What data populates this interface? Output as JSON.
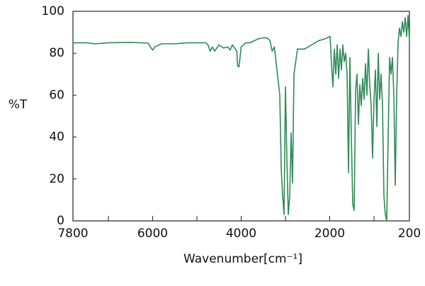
{
  "chart_data": {
    "type": "line",
    "xlabel": "Wavenumber[cm⁻¹]",
    "ylabel": "%T",
    "color": "#2e8b57",
    "xlim": [
      7800,
      200
    ],
    "ylim": [
      0,
      100
    ],
    "xticks": [
      7800,
      6000,
      4000,
      2000,
      200
    ],
    "xminorticks": [
      7000,
      5000,
      3000,
      1000
    ],
    "yticks": [
      0,
      20,
      40,
      60,
      80,
      100
    ],
    "x": [
      7800,
      7500,
      7300,
      7000,
      6500,
      6100,
      6050,
      6000,
      5950,
      5800,
      5500,
      5200,
      4800,
      4750,
      4700,
      4650,
      4600,
      4500,
      4400,
      4300,
      4250,
      4200,
      4100,
      4080,
      4050,
      4000,
      3900,
      3800,
      3600,
      3450,
      3400,
      3350,
      3300,
      3250,
      3128,
      3096,
      3064,
      3032,
      3000,
      2968,
      2936,
      2904,
      2872,
      2840,
      2808,
      2728,
      2568,
      2408,
      2248,
      2088,
      1992,
      1960,
      1928,
      1896,
      1864,
      1832,
      1800,
      1768,
      1736,
      1704,
      1672,
      1640,
      1608,
      1576,
      1544,
      1512,
      1480,
      1448,
      1416,
      1384,
      1352,
      1320,
      1288,
      1256,
      1224,
      1192,
      1160,
      1128,
      1096,
      1064,
      1032,
      1000,
      968,
      936,
      904,
      872,
      840,
      808,
      776,
      744,
      712,
      680,
      648,
      616,
      584,
      552,
      520,
      488,
      456,
      424,
      392,
      360,
      328,
      296,
      264,
      232,
      200
    ],
    "values": [
      85,
      85,
      84.5,
      85,
      85.2,
      84.8,
      83,
      81.5,
      83,
      84.5,
      84.5,
      85,
      85,
      84,
      81,
      83,
      81,
      84,
      82.5,
      83,
      81.5,
      84,
      81,
      74,
      73.5,
      83,
      85,
      85,
      87,
      87.5,
      87,
      86,
      81,
      83,
      60,
      25,
      12,
      3,
      64,
      30,
      3,
      12,
      42,
      18,
      70,
      82,
      82,
      84,
      86,
      87,
      88,
      75,
      64,
      82,
      70,
      84,
      68,
      82,
      72,
      84,
      76,
      80,
      70,
      23,
      78,
      40,
      8,
      5,
      62,
      70,
      46,
      65,
      55,
      68,
      58,
      75,
      60,
      82,
      65,
      55,
      30,
      58,
      72,
      45,
      80,
      58,
      70,
      55,
      12,
      3,
      0,
      40,
      78,
      70,
      78,
      60,
      17,
      60,
      85,
      92,
      88,
      95,
      90,
      97,
      88,
      98,
      86
    ]
  }
}
